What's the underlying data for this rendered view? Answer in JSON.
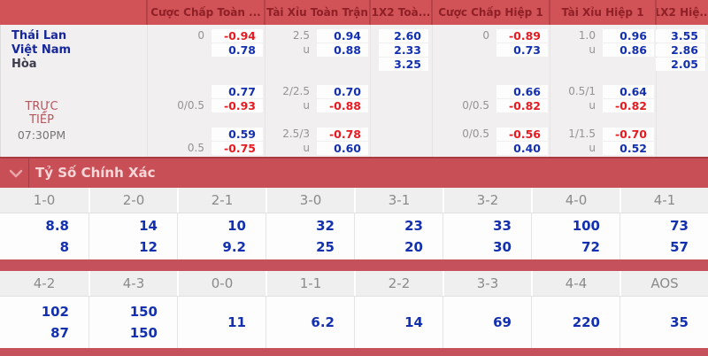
{
  "teams": [
    "Thái Lan",
    "Việt Nam",
    "Hòa"
  ],
  "live": {
    "label_line1": "TRỰC",
    "label_line2": "TIẾP",
    "time": "07:30PM"
  },
  "market_headers": [
    "Cược Chấp Toàn ...",
    "Tài Xỉu Toàn Trận",
    "1X2 Toà...",
    "Cược Chấp Hiệp 1",
    "Tài Xỉu Hiệp 1",
    "1X2 Hiệ..."
  ],
  "odds_rows": [
    {
      "team": "Thái Lan",
      "cells": [
        {
          "h": "0",
          "v": "-0.94",
          "c": "red"
        },
        {
          "h": "2.5",
          "v": "0.94",
          "c": "blue"
        },
        {
          "v": "2.60",
          "c": "blue"
        },
        {
          "h": "0",
          "v": "-0.89",
          "c": "red"
        },
        {
          "h": "1.0",
          "v": "0.96",
          "c": "blue"
        },
        {
          "v": "3.55",
          "c": "blue"
        }
      ]
    },
    {
      "team": "Việt Nam",
      "cells": [
        {
          "v": "0.78",
          "c": "blue"
        },
        {
          "h": "u",
          "v": "0.88",
          "c": "blue"
        },
        {
          "v": "2.33",
          "c": "blue"
        },
        {
          "v": "0.73",
          "c": "blue"
        },
        {
          "h": "u",
          "v": "0.86",
          "c": "blue"
        },
        {
          "v": "2.86",
          "c": "blue"
        }
      ]
    },
    {
      "team": "Hòa",
      "cells": [
        null,
        null,
        {
          "v": "3.25",
          "c": "blue"
        },
        null,
        null,
        {
          "v": "2.05",
          "c": "blue"
        }
      ]
    },
    {
      "cells": [
        {
          "v": "0.77",
          "c": "blue"
        },
        {
          "h": "2/2.5",
          "v": "0.70",
          "c": "blue"
        },
        null,
        {
          "v": "0.66",
          "c": "blue"
        },
        {
          "h": "0.5/1",
          "v": "0.64",
          "c": "blue"
        },
        null
      ]
    },
    {
      "cells": [
        {
          "h": "0/0.5",
          "v": "-0.93",
          "c": "red"
        },
        {
          "h": "u",
          "v": "-0.88",
          "c": "red"
        },
        null,
        {
          "h": "0/0.5",
          "v": "-0.82",
          "c": "red"
        },
        {
          "h": "u",
          "v": "-0.82",
          "c": "red"
        },
        null
      ]
    },
    {
      "cells": [
        {
          "v": "0.59",
          "c": "blue"
        },
        {
          "h": "2.5/3",
          "v": "-0.78",
          "c": "red"
        },
        null,
        {
          "h": "0/0.5",
          "v": "-0.56",
          "c": "red"
        },
        {
          "h": "1/1.5",
          "v": "-0.70",
          "c": "red"
        },
        null
      ]
    },
    {
      "cells": [
        {
          "h": "0.5",
          "v": "-0.75",
          "c": "red"
        },
        {
          "h": "u",
          "v": "0.60",
          "c": "blue"
        },
        null,
        {
          "v": "0.40",
          "c": "blue"
        },
        {
          "h": "u",
          "v": "0.52",
          "c": "blue"
        },
        null
      ]
    }
  ],
  "correct_score": {
    "title": "Tỷ Số Chính Xác",
    "chevron_icon": "chevron-down",
    "groups": [
      {
        "headers": [
          "1-0",
          "2-0",
          "2-1",
          "3-0",
          "3-1",
          "3-2",
          "4-0",
          "4-1"
        ],
        "cells": [
          [
            "8.8",
            "8"
          ],
          [
            "14",
            "12"
          ],
          [
            "10",
            "9.2"
          ],
          [
            "32",
            "25"
          ],
          [
            "23",
            "20"
          ],
          [
            "33",
            "30"
          ],
          [
            "100",
            "72"
          ],
          [
            "73",
            "57"
          ]
        ]
      },
      {
        "headers": [
          "4-2",
          "4-3",
          "0-0",
          "1-1",
          "2-2",
          "3-3",
          "4-4",
          "AOS"
        ],
        "cells": [
          [
            "102",
            "87"
          ],
          [
            "150",
            "150"
          ],
          [
            "11"
          ],
          [
            "6.2"
          ],
          [
            "14"
          ],
          [
            "69"
          ],
          [
            "220"
          ],
          [
            "35"
          ]
        ]
      }
    ]
  },
  "colors": {
    "header_red": "#d15358",
    "header_text": "#8e2026",
    "section_bar_red": "#c94f57",
    "divider_bar_red": "#c4515b",
    "odds_blue": "#1330b0",
    "odds_red": "#e8191f",
    "team_blue": "#16279c",
    "background_gray": "#f1efef"
  }
}
